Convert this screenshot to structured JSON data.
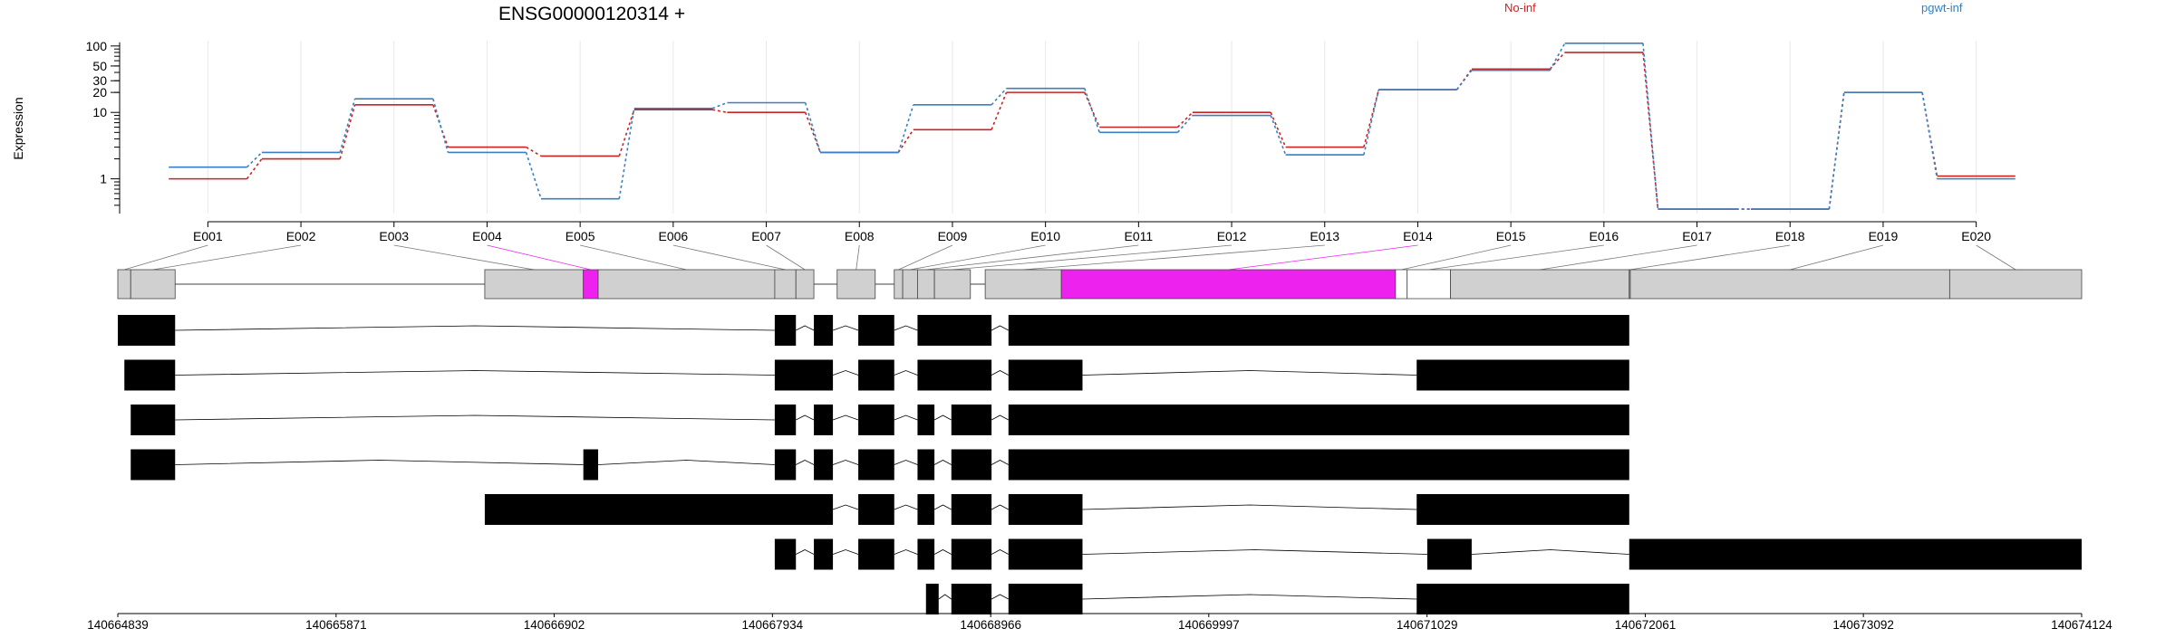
{
  "title": "ENSG00000120314 +",
  "colors": {
    "no_inf": "#cc2222",
    "pgwt_inf": "#3a7fc1",
    "highlight": "#ee22ee",
    "exon_grey": "#d0d0d0"
  },
  "chart_data": {
    "type": "line",
    "ylabel": "Expression",
    "yscale": "log",
    "ylim": [
      0.3,
      120
    ],
    "yticks": [
      "1",
      "10",
      "20",
      "30",
      "50",
      "100"
    ],
    "categories": [
      "E001",
      "E002",
      "E003",
      "E004",
      "E005",
      "E006",
      "E007",
      "E008",
      "E009",
      "E010",
      "E011",
      "E012",
      "E013",
      "E014",
      "E015",
      "E016",
      "E017",
      "E018",
      "E019",
      "E020"
    ],
    "series": [
      {
        "name": "No-inf",
        "color": "#cc2222",
        "values": [
          1,
          2,
          13,
          3,
          2.2,
          11,
          10,
          2.5,
          5.5,
          20,
          6,
          10,
          3,
          22,
          45,
          80,
          0.35,
          0.35,
          20,
          1.1
        ]
      },
      {
        "name": "pgwt-inf",
        "color": "#3a7fc1",
        "values": [
          1.5,
          2.5,
          16,
          2.5,
          0.5,
          11.5,
          14,
          2.5,
          13,
          23,
          5,
          9,
          2.3,
          22,
          43,
          110,
          0.35,
          0.35,
          20,
          1.0
        ]
      }
    ],
    "x_axis": {
      "ticks": [
        "140664839",
        "140665871",
        "140666902",
        "140667934",
        "140668966",
        "140669997",
        "140671029",
        "140672061",
        "140673092",
        "140674124"
      ]
    },
    "grid": "vertical"
  },
  "gene_model": {
    "exons": [
      {
        "id": "E001",
        "start": 140664839,
        "end": 140664900
      },
      {
        "id": "E002",
        "start": 140664900,
        "end": 140665110
      },
      {
        "id": "E003",
        "start": 140666574,
        "end": 140667040
      },
      {
        "id": "E004",
        "start": 140667040,
        "end": 140667110,
        "highlight": true
      },
      {
        "id": "E005",
        "start": 140667110,
        "end": 140667945
      },
      {
        "id": "E006",
        "start": 140667945,
        "end": 140668045
      },
      {
        "id": "E007",
        "start": 140668045,
        "end": 140668130
      },
      {
        "id": "E008",
        "start": 140668240,
        "end": 140668420
      },
      {
        "id": "E009",
        "start": 140668510,
        "end": 140668550
      },
      {
        "id": "E010",
        "start": 140668550,
        "end": 140668620
      },
      {
        "id": "E011",
        "start": 140668620,
        "end": 140668700
      },
      {
        "id": "E012",
        "start": 140668700,
        "end": 140668870
      },
      {
        "id": "E013",
        "start": 140668940,
        "end": 140669300
      },
      {
        "id": "E014",
        "start": 140669300,
        "end": 140670880,
        "highlight": true
      },
      {
        "id": "E015",
        "start": 140670880,
        "end": 140670935,
        "white": true
      },
      {
        "id": "E016",
        "start": 140670935,
        "end": 140671140,
        "white": true
      },
      {
        "id": "E017",
        "start": 140671140,
        "end": 140671985
      },
      {
        "id": "E018",
        "start": 140671985,
        "end": 140671990
      },
      {
        "id": "E019",
        "start": 140671990,
        "end": 140673500
      },
      {
        "id": "E020",
        "start": 140673500,
        "end": 140674124
      }
    ],
    "transcripts": [
      [
        [
          140664839,
          140665110
        ],
        [
          140667945,
          140668045
        ],
        [
          140668130,
          140668220
        ],
        [
          140668340,
          140668510
        ],
        [
          140668620,
          140668970
        ],
        [
          140669050,
          140671985
        ]
      ],
      [
        [
          140664870,
          140665110
        ],
        [
          140667945,
          140668220
        ],
        [
          140668340,
          140668510
        ],
        [
          140668620,
          140668970
        ],
        [
          140669050,
          140669400
        ],
        [
          140670980,
          140671985
        ]
      ],
      [
        [
          140664900,
          140665110
        ],
        [
          140667945,
          140668045
        ],
        [
          140668130,
          140668220
        ],
        [
          140668340,
          140668510
        ],
        [
          140668620,
          140668700
        ],
        [
          140668780,
          140668970
        ],
        [
          140669050,
          140671985
        ]
      ],
      [
        [
          140664900,
          140665110
        ],
        [
          140667040,
          140667110
        ],
        [
          140667945,
          140668045
        ],
        [
          140668130,
          140668220
        ],
        [
          140668340,
          140668510
        ],
        [
          140668620,
          140668700
        ],
        [
          140668780,
          140668970
        ],
        [
          140669050,
          140671985
        ]
      ],
      [
        [
          140666574,
          140668220
        ],
        [
          140668340,
          140668510
        ],
        [
          140668620,
          140668700
        ],
        [
          140668780,
          140668970
        ],
        [
          140669050,
          140669400
        ],
        [
          140670980,
          140671985
        ]
      ],
      [
        [
          140667945,
          140668045
        ],
        [
          140668130,
          140668220
        ],
        [
          140668340,
          140668510
        ],
        [
          140668620,
          140668700
        ],
        [
          140668780,
          140668970
        ],
        [
          140669050,
          140669400
        ],
        [
          140671030,
          140671240
        ],
        [
          140671985,
          140674124
        ]
      ],
      [
        [
          140668660,
          140668720
        ],
        [
          140668780,
          140668970
        ],
        [
          140669050,
          140669400
        ],
        [
          140670980,
          140671985
        ]
      ]
    ]
  }
}
